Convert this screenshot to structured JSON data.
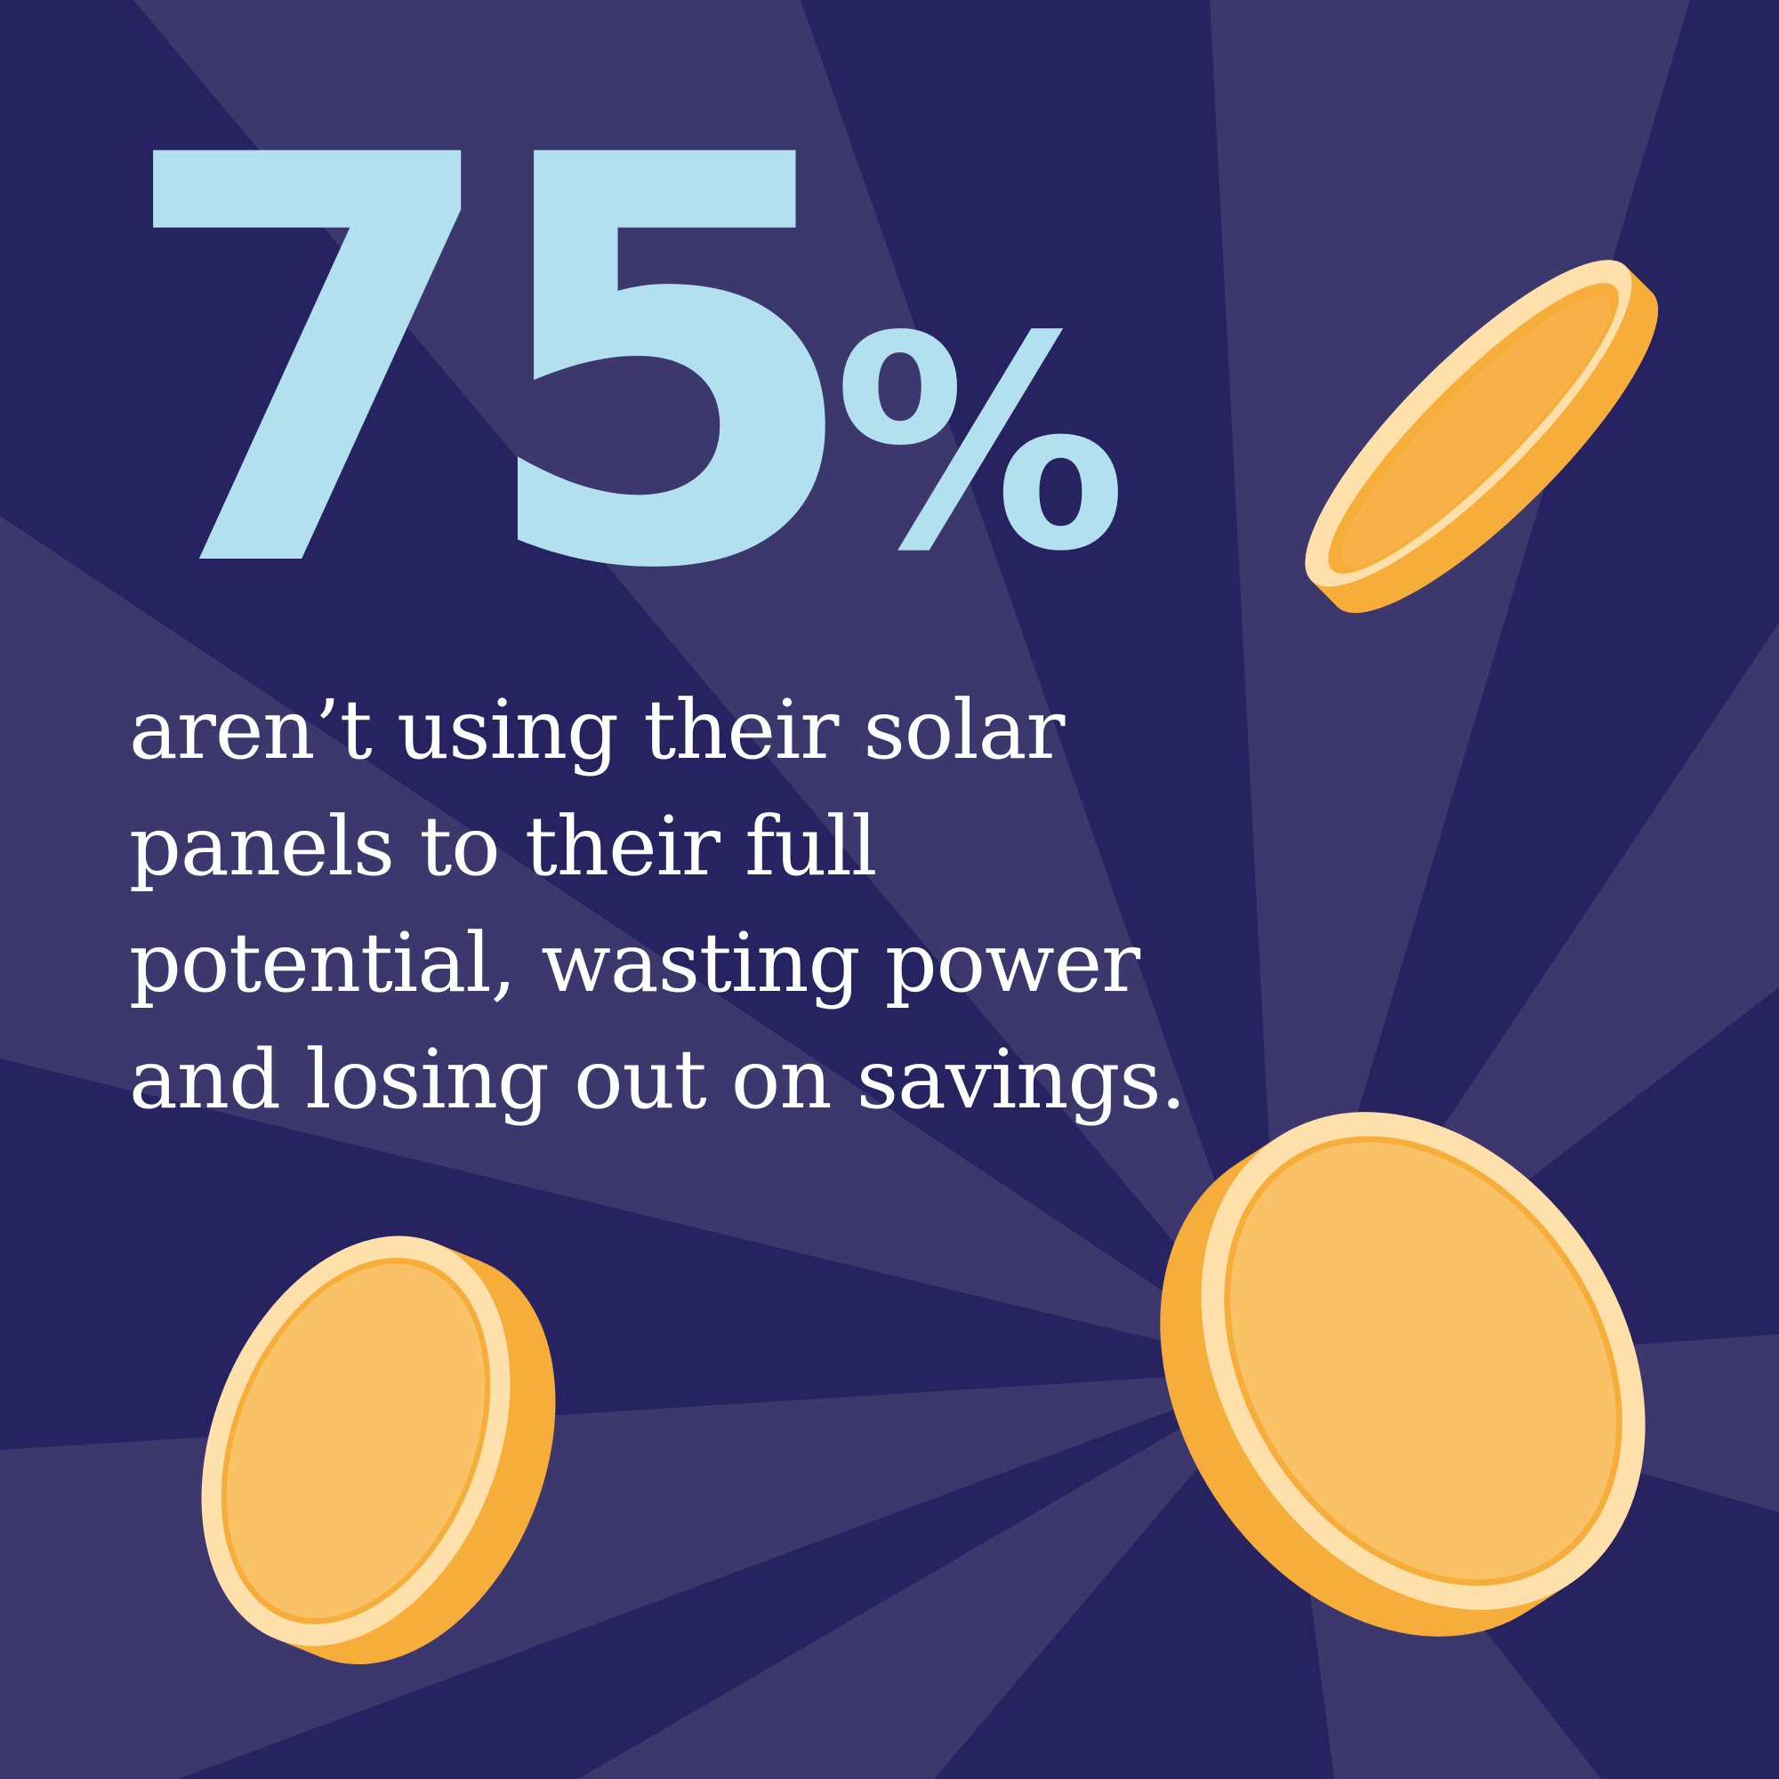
{
  "stat": {
    "value": "75",
    "unit": "%"
  },
  "statement": "aren’t using their solar panels to their full potential, wasting power and losing out on savings.",
  "colors": {
    "background": "#272360",
    "ray": "#3c386d",
    "stat": "#b3e0ef",
    "text": "#ffffff",
    "coin_edge": "#f7ad3a",
    "coin_rim": "#ffdfaa",
    "coin_face": "#f9c266"
  },
  "icons": [
    "coin-icon",
    "coin-icon",
    "coin-icon"
  ]
}
